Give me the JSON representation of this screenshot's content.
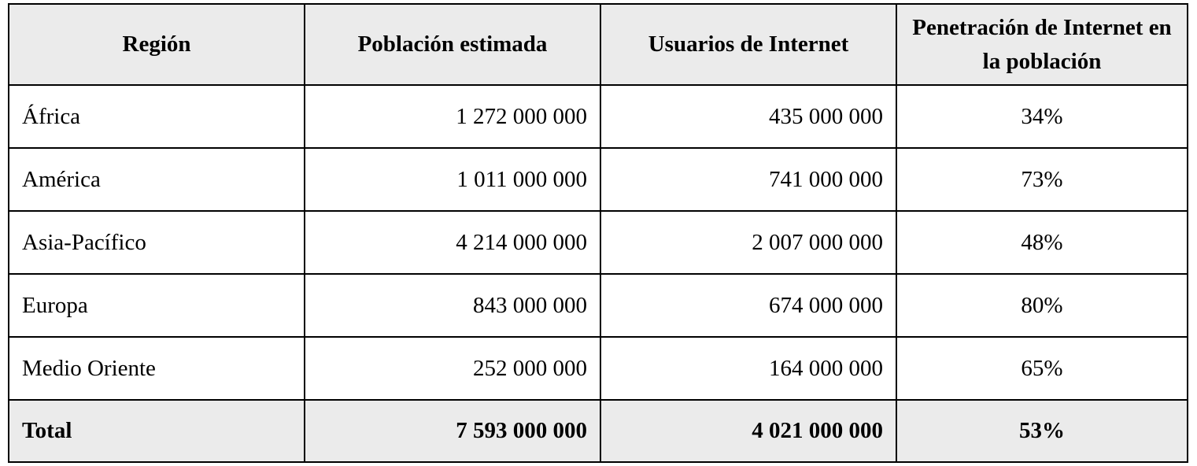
{
  "table": {
    "headers": [
      "Región",
      "Población estimada",
      "Usuarios de Internet",
      "Penetración de Internet en la población"
    ],
    "rows": [
      {
        "region": "África",
        "poblacion": "1 272 000 000",
        "usuarios": "435 000 000",
        "penetracion": "34%"
      },
      {
        "region": "América",
        "poblacion": "1 011 000 000",
        "usuarios": "741 000 000",
        "penetracion": "73%"
      },
      {
        "region": "Asia-Pacífico",
        "poblacion": "4 214 000 000",
        "usuarios": "2 007 000 000",
        "penetracion": "48%"
      },
      {
        "region": "Europa",
        "poblacion": "843 000 000",
        "usuarios": "674 000 000",
        "penetracion": "80%"
      },
      {
        "region": "Medio Oriente",
        "poblacion": "252 000 000",
        "usuarios": "164 000 000",
        "penetracion": "65%"
      }
    ],
    "total": {
      "region": "Total",
      "poblacion": "7 593 000 000",
      "usuarios": "4 021 000 000",
      "penetracion": "53%"
    }
  }
}
